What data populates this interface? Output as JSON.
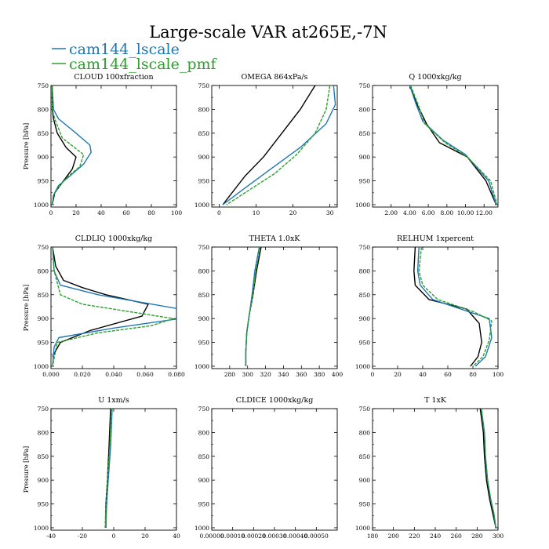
{
  "figure": {
    "title": "Large-scale VAR at265E,-7N",
    "legend": [
      {
        "name": "cam144_lscale",
        "color": "#1f77b4"
      },
      {
        "name": "cam144_lscale_pmf",
        "color": "#2ca02c"
      }
    ],
    "reference_line_color": "#000000"
  },
  "chart_data": [
    {
      "type": "line",
      "title": "CLOUD  100xfraction",
      "ylabel": "Pressure [hPa]",
      "ylim": [
        1005,
        750
      ],
      "xlim": [
        0,
        100
      ],
      "xticks": [
        "0",
        "20",
        "40",
        "60",
        "80",
        "100"
      ],
      "yticks": [
        "750",
        "800",
        "850",
        "900",
        "950",
        "1000"
      ],
      "series": [
        {
          "role": "reference",
          "color": "#000000",
          "dashed": false,
          "x": [
            1,
            1,
            2,
            5,
            12,
            20,
            17,
            10,
            3,
            1
          ],
          "y": [
            750,
            800,
            820,
            850,
            880,
            900,
            925,
            950,
            975,
            1000
          ]
        },
        {
          "name": "cam144_lscale",
          "color": "#1f77b4",
          "dashed": false,
          "x": [
            1,
            2,
            6,
            20,
            31,
            32,
            26,
            15,
            6,
            2,
            1
          ],
          "y": [
            750,
            800,
            820,
            850,
            875,
            890,
            915,
            940,
            960,
            980,
            1000
          ]
        },
        {
          "name": "cam144_lscale_pmf",
          "color": "#2ca02c",
          "dashed": true,
          "x": [
            1,
            1,
            3,
            9,
            26,
            23,
            14,
            7,
            2,
            1
          ],
          "y": [
            750,
            800,
            820,
            860,
            895,
            920,
            940,
            960,
            980,
            1000
          ]
        }
      ]
    },
    {
      "type": "line",
      "title": "OMEGA  864xPa/s",
      "ylabel": "",
      "ylim": [
        1005,
        750
      ],
      "xlim": [
        -2,
        32
      ],
      "xticks": [
        "0",
        "10",
        "20",
        "30"
      ],
      "xtick_values": [
        0,
        10,
        20,
        30
      ],
      "yticks": [
        "750",
        "800",
        "850",
        "900",
        "950",
        "1000"
      ],
      "series": [
        {
          "role": "reference",
          "color": "#000000",
          "dashed": false,
          "x": [
            26,
            22,
            17,
            12,
            7,
            3,
            1
          ],
          "y": [
            750,
            800,
            850,
            900,
            940,
            980,
            1000
          ]
        },
        {
          "name": "cam144_lscale",
          "color": "#1f77b4",
          "dashed": false,
          "x": [
            31,
            31.5,
            29,
            22,
            14,
            7,
            1
          ],
          "y": [
            750,
            790,
            830,
            880,
            925,
            965,
            1000
          ]
        },
        {
          "name": "cam144_lscale_pmf",
          "color": "#2ca02c",
          "dashed": true,
          "x": [
            30,
            29,
            26,
            21,
            15,
            8,
            2
          ],
          "y": [
            750,
            800,
            850,
            895,
            935,
            970,
            1000
          ]
        }
      ]
    },
    {
      "type": "line",
      "title": "Q  1000xkg/kg",
      "ylabel": "",
      "ylim": [
        1005,
        750
      ],
      "xlim": [
        0,
        13.5
      ],
      "xticks": [
        "2.00",
        "4.00",
        "6.00",
        "8.00",
        "10.00",
        "12.00"
      ],
      "xtick_values": [
        2,
        4,
        6,
        8,
        10,
        12
      ],
      "yticks": [
        "750",
        "800",
        "850",
        "900",
        "950",
        "1000"
      ],
      "series": [
        {
          "role": "reference",
          "color": "#000000",
          "dashed": false,
          "x": [
            4.0,
            4.8,
            5.8,
            7.2,
            10.2,
            12.2,
            13.3
          ],
          "y": [
            750,
            790,
            830,
            870,
            900,
            950,
            1000
          ]
        },
        {
          "name": "cam144_lscale",
          "color": "#1f77b4",
          "dashed": false,
          "x": [
            4.0,
            4.7,
            5.4,
            7.6,
            10.0,
            12.5,
            13.3
          ],
          "y": [
            750,
            790,
            825,
            865,
            895,
            950,
            1000
          ]
        },
        {
          "name": "cam144_lscale_pmf",
          "color": "#2ca02c",
          "dashed": true,
          "x": [
            4.1,
            4.9,
            5.6,
            7.8,
            10.2,
            12.7,
            13.4
          ],
          "y": [
            750,
            790,
            830,
            870,
            900,
            950,
            1000
          ]
        }
      ]
    },
    {
      "type": "line",
      "title": "CLDLIQ  1000xkg/kg",
      "ylabel": "Pressure [hPa]",
      "ylim": [
        1005,
        750
      ],
      "xlim": [
        0,
        0.08
      ],
      "xticks": [
        "0.000",
        "0.020",
        "0.040",
        "0.060",
        "0.080"
      ],
      "xtick_values": [
        0,
        0.02,
        0.04,
        0.06,
        0.08
      ],
      "yticks": [
        "750",
        "800",
        "850",
        "900",
        "950",
        "1000"
      ],
      "series": [
        {
          "role": "reference",
          "color": "#000000",
          "dashed": false,
          "x": [
            0.001,
            0.003,
            0.008,
            0.02,
            0.035,
            0.062,
            0.058,
            0.025,
            0.006,
            0.001
          ],
          "y": [
            750,
            790,
            820,
            835,
            850,
            870,
            895,
            925,
            950,
            980
          ]
        },
        {
          "name": "cam144_lscale",
          "color": "#1f77b4",
          "dashed": false,
          "x": [
            0.001,
            0.002,
            0.006,
            0.03,
            0.082,
            0.082,
            0.04,
            0.005,
            0.002,
            0.001
          ],
          "y": [
            750,
            800,
            830,
            850,
            880,
            900,
            920,
            940,
            960,
            1000
          ]
        },
        {
          "name": "cam144_lscale_pmf",
          "color": "#2ca02c",
          "dashed": true,
          "x": [
            0.001,
            0.002,
            0.006,
            0.02,
            0.078,
            0.064,
            0.03,
            0.004,
            0.001
          ],
          "y": [
            750,
            800,
            850,
            870,
            900,
            915,
            930,
            950,
            1000
          ]
        }
      ]
    },
    {
      "type": "line",
      "title": "THETA  1.0xK",
      "ylabel": "",
      "ylim": [
        1005,
        750
      ],
      "xlim": [
        260,
        400
      ],
      "xticks": [
        "280",
        "300",
        "320",
        "340",
        "360",
        "380",
        "400"
      ],
      "xtick_values": [
        280,
        300,
        320,
        340,
        360,
        380,
        400
      ],
      "yticks": [
        "750",
        "800",
        "850",
        "900",
        "950",
        "1000"
      ],
      "series": [
        {
          "role": "reference",
          "color": "#000000",
          "dashed": false,
          "x": [
            315,
            310,
            306,
            302,
            299,
            298,
            298
          ],
          "y": [
            750,
            800,
            850,
            890,
            930,
            970,
            1000
          ]
        },
        {
          "name": "cam144_lscale",
          "color": "#1f77b4",
          "dashed": false,
          "x": [
            313,
            308,
            305,
            302,
            299,
            298,
            298
          ],
          "y": [
            750,
            800,
            850,
            890,
            930,
            970,
            1000
          ]
        },
        {
          "name": "cam144_lscale_pmf",
          "color": "#2ca02c",
          "dashed": true,
          "x": [
            314,
            309,
            306,
            302,
            299,
            298,
            298
          ],
          "y": [
            750,
            800,
            850,
            890,
            930,
            970,
            1000
          ]
        }
      ]
    },
    {
      "type": "line",
      "title": "RELHUM  1xpercent",
      "ylabel": "",
      "ylim": [
        1005,
        750
      ],
      "xlim": [
        0,
        100
      ],
      "xticks": [
        "0",
        "20",
        "40",
        "60",
        "80",
        "100"
      ],
      "yticks": [
        "750",
        "800",
        "850",
        "900",
        "950",
        "1000"
      ],
      "series": [
        {
          "role": "reference",
          "color": "#000000",
          "dashed": false,
          "x": [
            34,
            33,
            34,
            45,
            75,
            85,
            87,
            84,
            78
          ],
          "y": [
            750,
            800,
            830,
            860,
            880,
            910,
            950,
            980,
            1000
          ]
        },
        {
          "name": "cam144_lscale",
          "color": "#1f77b4",
          "dashed": false,
          "x": [
            37,
            36,
            38,
            48,
            76,
            93,
            95,
            90,
            82
          ],
          "y": [
            750,
            800,
            830,
            860,
            885,
            900,
            940,
            980,
            1000
          ]
        },
        {
          "name": "cam144_lscale_pmf",
          "color": "#2ca02c",
          "dashed": true,
          "x": [
            39,
            37,
            40,
            52,
            80,
            95,
            93,
            88,
            80
          ],
          "y": [
            750,
            800,
            830,
            860,
            885,
            905,
            945,
            980,
            1000
          ]
        }
      ]
    },
    {
      "type": "line",
      "title": "U  1xm/s",
      "ylabel": "Pressure [hPa]",
      "ylim": [
        1005,
        750
      ],
      "xlim": [
        -40,
        40
      ],
      "xticks": [
        "-40",
        "-20",
        "0",
        "20",
        "40"
      ],
      "xtick_values": [
        -40,
        -20,
        0,
        20,
        40
      ],
      "yticks": [
        "750",
        "800",
        "850",
        "900",
        "950",
        "1000"
      ],
      "series": [
        {
          "role": "reference",
          "color": "#000000",
          "dashed": false,
          "x": [
            -2,
            -3,
            -4,
            -5,
            -5
          ],
          "y": [
            750,
            830,
            900,
            950,
            1000
          ]
        },
        {
          "name": "cam144_lscale",
          "color": "#1f77b4",
          "dashed": false,
          "x": [
            -1,
            -2,
            -3.5,
            -4.5,
            -5
          ],
          "y": [
            750,
            830,
            900,
            950,
            1000
          ]
        },
        {
          "name": "cam144_lscale_pmf",
          "color": "#2ca02c",
          "dashed": true,
          "x": [
            -1.5,
            -2.5,
            -4,
            -5,
            -5.5
          ],
          "y": [
            750,
            830,
            900,
            950,
            1000
          ]
        }
      ]
    },
    {
      "type": "line",
      "title": "CLDICE  1000xkg/kg",
      "ylabel": "",
      "ylim": [
        1005,
        750
      ],
      "xlim": [
        0,
        0.0006
      ],
      "xticks": [
        "0.00000",
        "0.00010",
        "0.00020",
        "0.00030",
        "0.00040",
        "0.00050"
      ],
      "xtick_values": [
        0,
        0.0001,
        0.0002,
        0.0003,
        0.0004,
        0.0005
      ],
      "yticks": [
        "750",
        "800",
        "850",
        "900",
        "950",
        "1000"
      ],
      "series": []
    },
    {
      "type": "line",
      "title": "T  1xK",
      "ylabel": "",
      "ylim": [
        1005,
        750
      ],
      "xlim": [
        180,
        300
      ],
      "xticks": [
        "180",
        "200",
        "220",
        "240",
        "260",
        "280",
        "300"
      ],
      "xtick_values": [
        180,
        200,
        220,
        240,
        260,
        280,
        300
      ],
      "yticks": [
        "750",
        "800",
        "850",
        "900",
        "950",
        "1000"
      ],
      "series": [
        {
          "role": "reference",
          "color": "#000000",
          "dashed": false,
          "x": [
            283,
            286,
            287,
            289,
            292,
            295,
            298
          ],
          "y": [
            750,
            800,
            850,
            900,
            940,
            970,
            1000
          ]
        },
        {
          "name": "cam144_lscale",
          "color": "#1f77b4",
          "dashed": false,
          "x": [
            284,
            287,
            288,
            290,
            293,
            296,
            298
          ],
          "y": [
            750,
            800,
            850,
            900,
            940,
            970,
            1000
          ]
        },
        {
          "name": "cam144_lscale_pmf",
          "color": "#2ca02c",
          "dashed": true,
          "x": [
            284,
            287,
            288,
            290,
            293,
            296,
            298
          ],
          "y": [
            750,
            800,
            850,
            900,
            940,
            970,
            1000
          ]
        }
      ]
    }
  ]
}
